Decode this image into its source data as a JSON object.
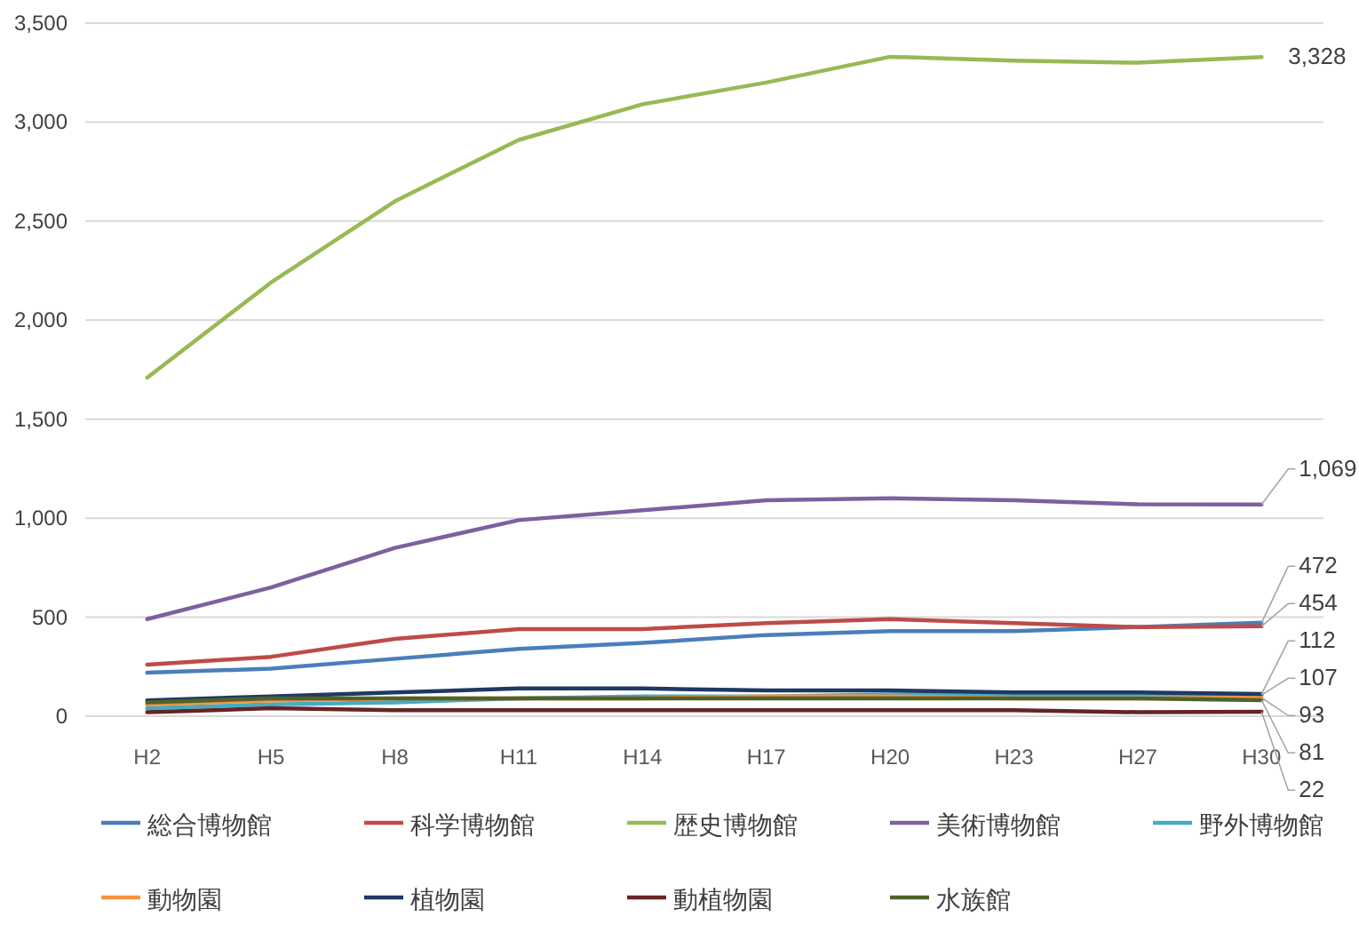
{
  "chart_data": {
    "type": "line",
    "categories": [
      "H2",
      "H5",
      "H8",
      "H11",
      "H14",
      "H17",
      "H20",
      "H23",
      "H27",
      "H30"
    ],
    "ylim": [
      0,
      3500
    ],
    "yticks": [
      0,
      {
        "value": 500,
        "label": "500"
      },
      {
        "value": 1000,
        "label": "1,000"
      },
      {
        "value": 1500,
        "label": "1,500"
      },
      {
        "value": 2000,
        "label": "2,000"
      },
      {
        "value": 2500,
        "label": "2,500"
      },
      {
        "value": 3000,
        "label": "3,000"
      },
      {
        "value": 3500,
        "label": "3,500"
      }
    ],
    "grid": "y",
    "legend": "bottom",
    "series": [
      {
        "name": "総合博物館",
        "color": "#4a7ebb",
        "values": [
          220,
          240,
          290,
          340,
          370,
          410,
          430,
          430,
          450,
          472
        ],
        "value_labels": [
          null,
          null,
          null,
          null,
          null,
          null,
          null,
          null,
          null,
          "472"
        ]
      },
      {
        "name": "科学博物館",
        "color": "#be4b48",
        "values": [
          260,
          300,
          390,
          440,
          440,
          470,
          490,
          470,
          450,
          454
        ],
        "value_labels": [
          null,
          null,
          null,
          null,
          null,
          null,
          null,
          null,
          null,
          "454"
        ]
      },
      {
        "name": "歴史博物館",
        "color": "#98b954",
        "values": [
          1710,
          2190,
          2600,
          2910,
          3090,
          3200,
          3330,
          3310,
          3300,
          3328
        ],
        "value_labels": [
          null,
          null,
          null,
          null,
          null,
          null,
          null,
          null,
          null,
          "3,328"
        ]
      },
      {
        "name": "美術博物館",
        "color": "#7d60a0",
        "values": [
          490,
          650,
          850,
          990,
          1040,
          1090,
          1100,
          1090,
          1070,
          1069
        ],
        "value_labels": [
          null,
          null,
          null,
          null,
          null,
          null,
          null,
          null,
          null,
          "1,069"
        ]
      },
      {
        "name": "野外博物館",
        "color": "#46aac5",
        "values": [
          40,
          60,
          70,
          90,
          100,
          100,
          110,
          110,
          110,
          107
        ],
        "value_labels": [
          null,
          null,
          null,
          null,
          null,
          null,
          null,
          null,
          null,
          "107"
        ]
      },
      {
        "name": "動物園",
        "color": "#f69240",
        "values": [
          60,
          80,
          90,
          90,
          90,
          100,
          100,
          90,
          90,
          93
        ],
        "value_labels": [
          null,
          null,
          null,
          null,
          null,
          null,
          null,
          null,
          null,
          "93"
        ]
      },
      {
        "name": "植物園",
        "color": "#1f3864",
        "values": [
          80,
          100,
          120,
          140,
          140,
          130,
          130,
          120,
          120,
          112
        ],
        "value_labels": [
          null,
          null,
          null,
          null,
          null,
          null,
          null,
          null,
          null,
          "112"
        ]
      },
      {
        "name": "動植物園",
        "color": "#632523",
        "values": [
          20,
          40,
          30,
          30,
          30,
          30,
          30,
          30,
          20,
          22
        ],
        "value_labels": [
          null,
          null,
          null,
          null,
          null,
          null,
          null,
          null,
          null,
          "22"
        ]
      },
      {
        "name": "水族館",
        "color": "#4f6228",
        "values": [
          70,
          90,
          90,
          90,
          90,
          90,
          90,
          90,
          90,
          81
        ],
        "value_labels": [
          null,
          null,
          null,
          null,
          null,
          null,
          null,
          null,
          null,
          "81"
        ]
      }
    ]
  }
}
